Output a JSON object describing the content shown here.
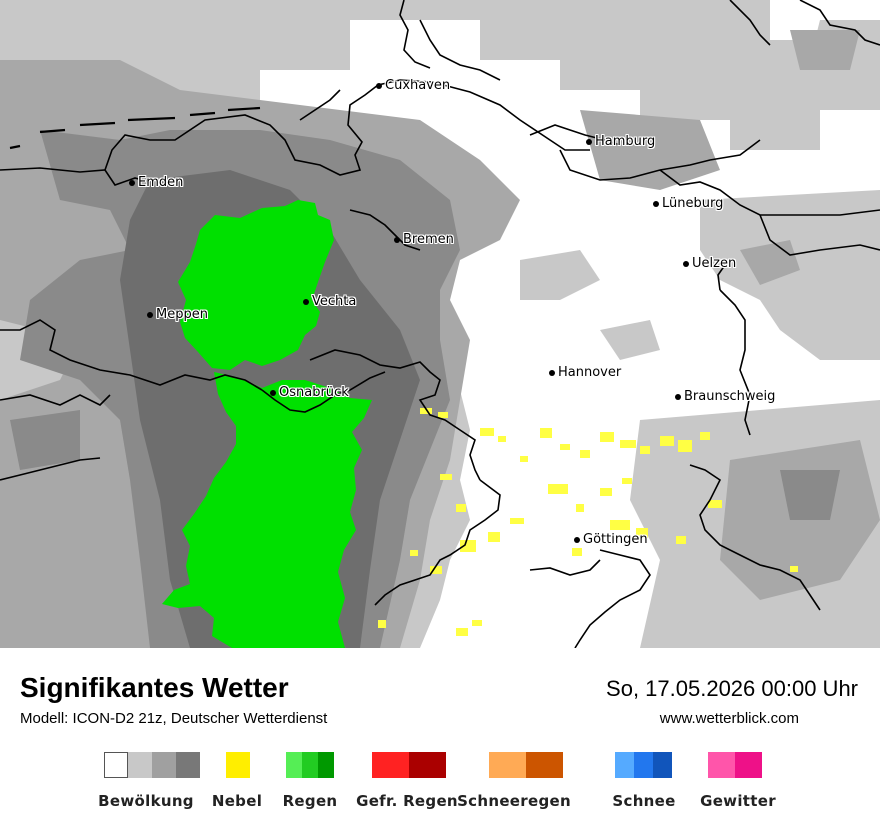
{
  "map": {
    "cities": [
      {
        "name": "Cuxhaven",
        "key": "cuxhaven"
      },
      {
        "name": "Hamburg",
        "key": "hamburg"
      },
      {
        "name": "Emden",
        "key": "emden"
      },
      {
        "name": "Lüneburg",
        "key": "lueneburg"
      },
      {
        "name": "Bremen",
        "key": "bremen"
      },
      {
        "name": "Uelzen",
        "key": "uelzen"
      },
      {
        "name": "Vechta",
        "key": "vechta"
      },
      {
        "name": "Meppen",
        "key": "meppen"
      },
      {
        "name": "Hannover",
        "key": "hannover"
      },
      {
        "name": "Osnabrück",
        "key": "osnabrueck"
      },
      {
        "name": "Braunschweig",
        "key": "braunschweig"
      },
      {
        "name": "Göttingen",
        "key": "goettingen"
      }
    ],
    "colors": {
      "cloud_1": "#c8c8c8",
      "cloud_2": "#a8a8a8",
      "cloud_3": "#8a8a8a",
      "cloud_4": "#6e6e6e",
      "rain": "#00e000",
      "fog": "#ffff44",
      "border": "#000000"
    }
  },
  "footer": {
    "title": "Signifikantes Wetter",
    "model": "Modell: ICON-D2 21z, Deutscher Wetterdienst",
    "datetime": "So, 17.05.2026 00:00 Uhr",
    "website": "www.wetterblick.com"
  },
  "legend": [
    {
      "label": "Bewölkung",
      "colors": [
        "#ffffff",
        "#c8c8c8",
        "#a0a0a0",
        "#787878"
      ]
    },
    {
      "label": "Nebel",
      "colors": [
        "#ffee00"
      ]
    },
    {
      "label": "Regen",
      "colors": [
        "#55ee55",
        "#22cc22",
        "#009900"
      ]
    },
    {
      "label": "Gefr. Regen",
      "colors": [
        "#ff2222",
        "#cc1111",
        "#aa0000"
      ]
    },
    {
      "label": "Schneeregen",
      "colors": [
        "#ffaa55",
        "#dd7711",
        "#cc5500"
      ]
    },
    {
      "label": "Schnee",
      "colors": [
        "#55aaff",
        "#2277ee",
        "#1155bb"
      ]
    },
    {
      "label": "Gewitter",
      "colors": [
        "#ff55aa",
        "#ee1188"
      ]
    }
  ]
}
